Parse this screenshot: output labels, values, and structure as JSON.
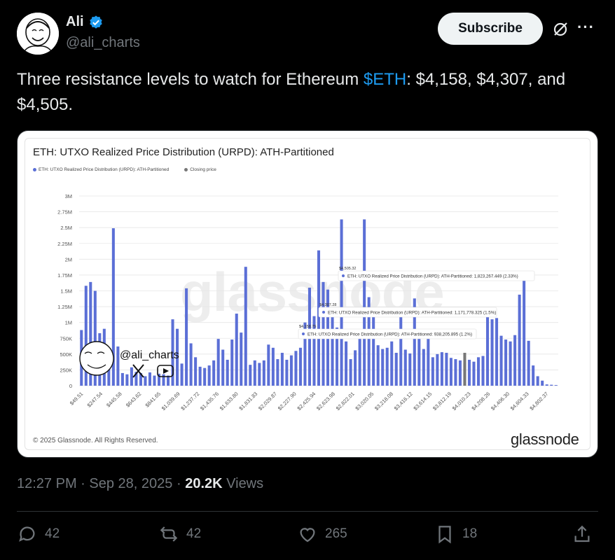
{
  "author": {
    "display_name": "Ali",
    "handle": "@ali_charts",
    "verified_icon": "verified-badge-icon"
  },
  "header": {
    "subscribe_label": "Subscribe",
    "grok_icon": "grok-icon",
    "more_icon": "more-icon",
    "more_text": "···"
  },
  "tweet": {
    "text_before": "Three resistance levels to watch for Ethereum ",
    "cashtag": "$ETH",
    "text_after": ": $4,158, $4,307, and $4,505."
  },
  "media": {
    "watermark": "glassnode",
    "copyright": "© 2025 Glassnode. All Rights Reserved.",
    "brand": "glassnode",
    "stamp_handle": "@ali_charts",
    "legend": {
      "series": "ETH: UTXO Realized Price Distribution (URPD): ATH-Partitioned",
      "closing": "Closing price"
    },
    "tooltips": [
      {
        "price": "$4,505.32",
        "text": "ETH: UTXO Realized Price Distribution (URPD): ATH-Partitioned: 1,823,267.449 (2.33%)"
      },
      {
        "price": "$4,307.28",
        "text": "ETH: UTXO Realized Price Distribution (URPD): ATH-Partitioned: 1,171,778.325 (1.5%)"
      },
      {
        "price": "$4,158.75",
        "text": "ETH: UTXO Realized Price Distribution (URPD): ATH-Partitioned: 938,205.895 (1.2%)"
      }
    ]
  },
  "chart_data": {
    "type": "bar",
    "title": "ETH: UTXO Realized Price Distribution (URPD): ATH-Partitioned",
    "series_name": "ETH: UTXO Realized Price Distribution (URPD): ATH-Partitioned",
    "colors": {
      "bar": "#5b6fd6",
      "closing": "#777777",
      "grid": "#e6e6e6"
    },
    "ylim": [
      0,
      3000000
    ],
    "y_ticks": [
      "0",
      "250K",
      "500K",
      "750K",
      "1M",
      "1.25M",
      "1.5M",
      "1.75M",
      "2M",
      "2.25M",
      "2.5M",
      "2.75M",
      "3M"
    ],
    "x_ticks": [
      "$49.51",
      "$247.54",
      "$445.58",
      "$643.62",
      "$841.65",
      "$1,039.69",
      "$1,237.72",
      "$1,435.76",
      "$1,633.80",
      "$1,831.83",
      "$2,029.87",
      "$2,227.90",
      "$2,425.94",
      "$2,623.98",
      "$2,822.01",
      "$3,020.05",
      "$3,218.08",
      "$3,416.12",
      "$3,614.15",
      "$3,812.19",
      "$4,010.23",
      "$4,208.26",
      "$4,406.30",
      "$4,604.33",
      "$4,802.37"
    ],
    "values": [
      880000,
      1580000,
      1640000,
      1500000,
      830000,
      900000,
      540000,
      2490000,
      620000,
      200000,
      180000,
      290000,
      220000,
      200000,
      150000,
      210000,
      160000,
      190000,
      180000,
      160000,
      1050000,
      900000,
      350000,
      1540000,
      670000,
      450000,
      300000,
      280000,
      320000,
      400000,
      740000,
      570000,
      410000,
      730000,
      1140000,
      840000,
      1880000,
      330000,
      400000,
      360000,
      400000,
      650000,
      600000,
      420000,
      520000,
      410000,
      480000,
      550000,
      600000,
      1000000,
      1550000,
      1100000,
      2140000,
      1640000,
      1520000,
      1200000,
      920000,
      2630000,
      700000,
      420000,
      560000,
      750000,
      2630000,
      1400000,
      1200000,
      640000,
      580000,
      600000,
      700000,
      520000,
      1200000,
      570000,
      510000,
      1380000,
      820000,
      580000,
      760000,
      450000,
      500000,
      530000,
      520000,
      440000,
      420000,
      400000,
      360000,
      410000,
      380000,
      450000,
      470000,
      1150000,
      1050000,
      1070000,
      790000,
      730000,
      700000,
      800000,
      1440000,
      1790000,
      710000,
      320000,
      150000,
      80000,
      20000,
      15000,
      10000
    ],
    "closing_index": 84,
    "closing_value": 520000
  },
  "meta": {
    "time": "12:27 PM",
    "sep": "·",
    "date": "Sep 28, 2025",
    "views_count": "20.2K",
    "views_label": "Views"
  },
  "actions": {
    "replies": "42",
    "reposts": "42",
    "likes": "265",
    "bookmarks": "18"
  }
}
